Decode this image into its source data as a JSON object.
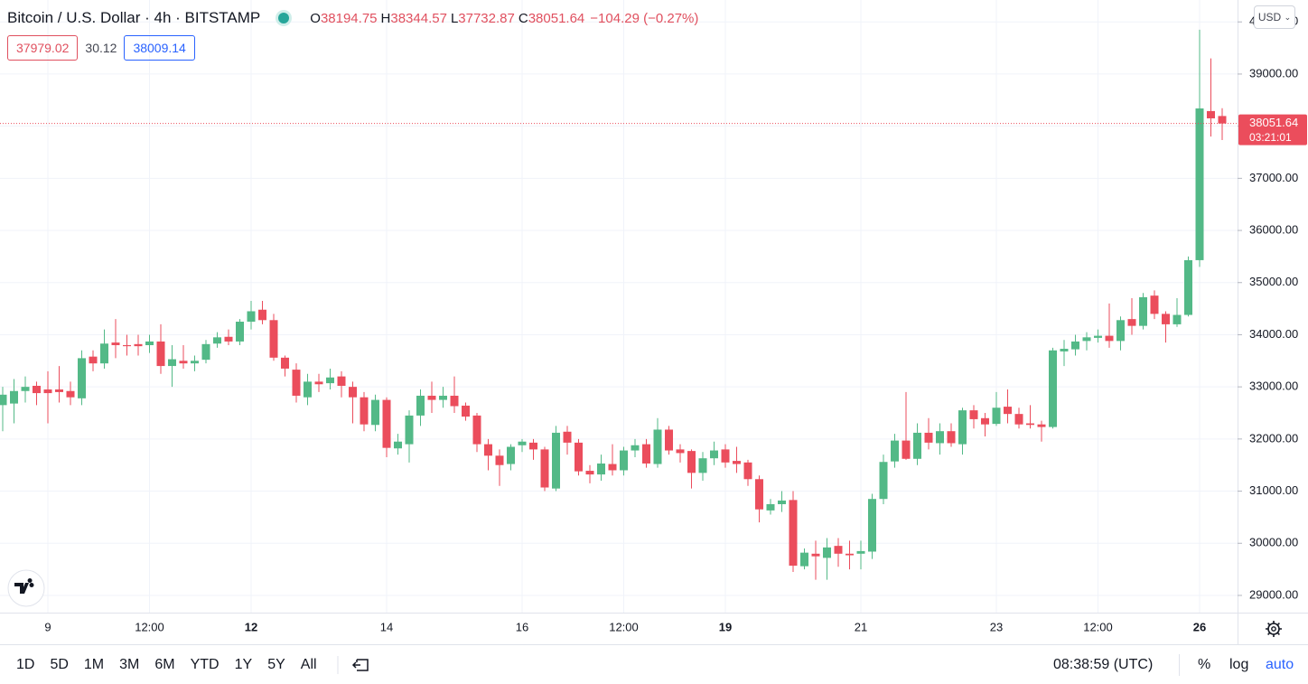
{
  "header": {
    "title": "Bitcoin / U.S. Dollar · 4h · BITSTAMP",
    "ohlc": [
      {
        "key": "O",
        "value": "38194.75"
      },
      {
        "key": "H",
        "value": "38344.57"
      },
      {
        "key": "L",
        "value": "37732.87"
      },
      {
        "key": "C",
        "value": "38051.64"
      }
    ],
    "change": "−104.29 (−0.27%)",
    "bid": "37979.02",
    "spread": "30.12",
    "ask": "38009.14",
    "currency": "USD"
  },
  "chart_data": {
    "type": "candlestick",
    "categories": [
      null,
      null,
      null,
      null,
      "9",
      null,
      null,
      null,
      null,
      null,
      null,
      null,
      null,
      "12:00",
      null,
      null,
      null,
      null,
      null,
      null,
      null,
      null,
      "12",
      null,
      null,
      null,
      null,
      null,
      null,
      null,
      null,
      null,
      null,
      null,
      "14",
      null,
      null,
      null,
      null,
      null,
      null,
      null,
      null,
      null,
      null,
      null,
      "16",
      null,
      null,
      null,
      null,
      null,
      null,
      null,
      null,
      "12:00",
      null,
      null,
      null,
      null,
      null,
      null,
      null,
      null,
      "19",
      null,
      null,
      null,
      null,
      null,
      null,
      null,
      null,
      null,
      null,
      null,
      "21",
      null,
      null,
      null,
      null,
      null,
      null,
      null,
      null,
      null,
      null,
      null,
      "23",
      null,
      null,
      null,
      null,
      null,
      null,
      null,
      null,
      "12:00",
      null,
      null,
      null,
      null,
      null,
      null,
      null,
      null,
      "26",
      null,
      null
    ],
    "open": [
      32650,
      32680,
      32920,
      33020,
      32950,
      32950,
      32920,
      32780,
      33580,
      33450,
      33850,
      33800,
      33820,
      33800,
      33870,
      33400,
      33500,
      33450,
      33520,
      33830,
      33960,
      33870,
      34250,
      34480,
      34280,
      33560,
      33330,
      32800,
      33100,
      33070,
      33200,
      33000,
      32800,
      32270,
      32750,
      31820,
      31900,
      32450,
      32830,
      32750,
      32830,
      32640,
      32450,
      31900,
      31680,
      31520,
      31880,
      31930,
      31800,
      31050,
      32140,
      31930,
      31390,
      31320,
      31520,
      31400,
      31780,
      31900,
      31520,
      32180,
      31800,
      31770,
      31350,
      31630,
      31800,
      31580,
      31550,
      31230,
      30630,
      30750,
      30830,
      29560,
      29800,
      29720,
      29950,
      29800,
      29800,
      29840,
      30850,
      31570,
      31970,
      31620,
      32120,
      31920,
      32150,
      31900,
      32550,
      32400,
      32290,
      32620,
      32480,
      32300,
      32280,
      32230,
      33680,
      33720,
      33880,
      33940,
      33980,
      33880,
      34300,
      34170,
      34750,
      34400,
      34200,
      34380,
      35430,
      38290,
      38194.75
    ],
    "high": [
      33000,
      33150,
      33200,
      33100,
      33300,
      33400,
      33100,
      33700,
      33700,
      34100,
      34300,
      34000,
      34000,
      34000,
      34200,
      33800,
      33800,
      33600,
      33900,
      34050,
      34100,
      34300,
      34650,
      34650,
      34400,
      33600,
      33450,
      33250,
      33250,
      33350,
      33300,
      33100,
      32900,
      32850,
      32800,
      32100,
      32550,
      32950,
      33100,
      33000,
      33200,
      32700,
      32500,
      32000,
      31800,
      31900,
      32000,
      32000,
      31850,
      32250,
      32250,
      32000,
      31500,
      31700,
      31900,
      31850,
      32000,
      32000,
      32400,
      32250,
      31900,
      31800,
      31750,
      31950,
      31900,
      31850,
      31600,
      31300,
      30850,
      31000,
      31000,
      29900,
      30050,
      30100,
      30100,
      30050,
      30050,
      30950,
      31700,
      32100,
      32900,
      32300,
      32400,
      32300,
      32300,
      32600,
      32650,
      32500,
      32900,
      32950,
      32600,
      32650,
      32350,
      33750,
      33900,
      34000,
      34050,
      34100,
      34600,
      34350,
      34700,
      34800,
      34850,
      34450,
      34700,
      35500,
      39850,
      39300,
      38344.57
    ],
    "low": [
      32150,
      32300,
      32700,
      32650,
      32300,
      32700,
      32650,
      32650,
      33300,
      33350,
      33550,
      33600,
      33600,
      33650,
      33250,
      33000,
      33350,
      33300,
      33450,
      33750,
      33800,
      33800,
      34100,
      34200,
      33500,
      33200,
      32700,
      32650,
      32900,
      32950,
      32800,
      32300,
      32150,
      32150,
      31650,
      31700,
      31550,
      32250,
      32500,
      32600,
      32500,
      32350,
      31750,
      31400,
      31100,
      31400,
      31750,
      31600,
      31000,
      31000,
      31700,
      31300,
      31150,
      31200,
      31300,
      31300,
      31650,
      31450,
      31450,
      31700,
      31550,
      31050,
      31200,
      31500,
      31450,
      31350,
      31100,
      30400,
      30550,
      30600,
      29450,
      29500,
      29300,
      29300,
      29550,
      29500,
      29500,
      29700,
      30750,
      31450,
      31600,
      31500,
      31800,
      31700,
      31850,
      31700,
      32200,
      32050,
      32250,
      32300,
      32200,
      32200,
      31950,
      32200,
      33400,
      33600,
      33700,
      33850,
      33750,
      33700,
      34000,
      34100,
      34300,
      33850,
      34150,
      34350,
      35300,
      37800,
      37732.87
    ],
    "close": [
      32850,
      32920,
      33000,
      32880,
      32880,
      32900,
      32800,
      33550,
      33450,
      33830,
      33800,
      33780,
      33780,
      33870,
      33400,
      33530,
      33450,
      33500,
      33820,
      33950,
      33870,
      34250,
      34450,
      34280,
      33560,
      33350,
      32830,
      33100,
      33050,
      33180,
      33020,
      32800,
      32280,
      32750,
      31830,
      31950,
      32450,
      32830,
      32750,
      32830,
      32630,
      32430,
      31900,
      31680,
      31500,
      31850,
      31950,
      31800,
      31070,
      32120,
      31930,
      31380,
      31320,
      31530,
      31400,
      31780,
      31880,
      31530,
      32180,
      31780,
      31730,
      31350,
      31630,
      31780,
      31550,
      31520,
      31230,
      30650,
      30750,
      30820,
      29570,
      29820,
      29750,
      29920,
      29800,
      29770,
      29850,
      30850,
      31560,
      31970,
      31620,
      32120,
      31930,
      32150,
      31920,
      32550,
      32380,
      32280,
      32600,
      32480,
      32280,
      32270,
      32230,
      33700,
      33730,
      33870,
      33950,
      33980,
      33880,
      34280,
      34170,
      34720,
      34400,
      34200,
      34380,
      35430,
      38340,
      38150,
      38051.64
    ],
    "up_color": "#53b987",
    "down_color": "#eb4d5c",
    "ylim": [
      28670,
      40420
    ],
    "yticks": [
      {
        "value": 29000,
        "label": "29000.00"
      },
      {
        "value": 30000,
        "label": "30000.00"
      },
      {
        "value": 31000,
        "label": "31000.00"
      },
      {
        "value": 32000,
        "label": "32000.00"
      },
      {
        "value": 33000,
        "label": "33000.00"
      },
      {
        "value": 34000,
        "label": "34000.00"
      },
      {
        "value": 35000,
        "label": "35000.00"
      },
      {
        "value": 36000,
        "label": "36000.00"
      },
      {
        "value": 37000,
        "label": "37000.00"
      },
      {
        "value": 38000,
        "label": "38000.00"
      },
      {
        "value": 39000,
        "label": "39000.00"
      },
      {
        "value": 40000,
        "label": "40000.00"
      }
    ],
    "last_price": {
      "value": 38051.64,
      "label": "38051.64"
    },
    "countdown": "03:21:01",
    "grid": true
  },
  "toolbar": {
    "intervals": [
      "1D",
      "5D",
      "1M",
      "3M",
      "6M",
      "YTD",
      "1Y",
      "5Y",
      "All"
    ],
    "clock": "08:38:59 (UTC)",
    "percent": "%",
    "log": "log",
    "auto": "auto"
  }
}
